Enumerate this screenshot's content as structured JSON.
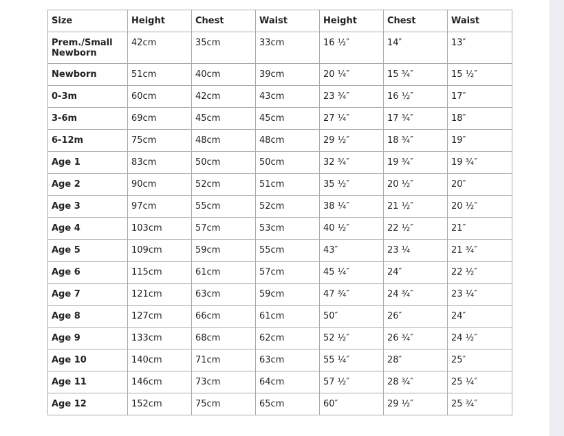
{
  "headers": [
    "Size",
    "Height",
    "Chest",
    "Waist",
    "Height",
    "Chest",
    "Waist"
  ],
  "rows": [
    [
      "Prem./Small Newborn",
      "42cm",
      "35cm",
      "33cm",
      "16 ½″",
      "14″",
      "13″"
    ],
    [
      "Newborn",
      "51cm",
      "40cm",
      "39cm",
      "20 ¼″",
      "15 ¾″",
      "15 ½″"
    ],
    [
      "0-3m",
      "60cm",
      "42cm",
      "43cm",
      "23 ¾″",
      "16 ½″",
      "17″"
    ],
    [
      "3-6m",
      "69cm",
      "45cm",
      "45cm",
      "27 ¼″",
      "17 ¾″",
      "18″"
    ],
    [
      "6-12m",
      "75cm",
      "48cm",
      "48cm",
      "29 ½″",
      "18 ¾″",
      "19″"
    ],
    [
      "Age 1",
      "83cm",
      "50cm",
      "50cm",
      "32 ¾″",
      "19 ¾″",
      "19 ¾″"
    ],
    [
      "Age 2",
      "90cm",
      "52cm",
      "51cm",
      "35 ½″",
      "20 ½″",
      "20″"
    ],
    [
      "Age 3",
      "97cm",
      "55cm",
      "52cm",
      "38 ¼″",
      "21 ½″",
      "20 ½″"
    ],
    [
      "Age 4",
      "103cm",
      "57cm",
      "53cm",
      "40 ½″",
      "22 ½″",
      "21″"
    ],
    [
      "Age 5",
      "109cm",
      "59cm",
      "55cm",
      "43″",
      "23 ¼",
      "21 ¾″"
    ],
    [
      "Age 6",
      "115cm",
      "61cm",
      "57cm",
      "45 ¼″",
      "24″",
      "22 ½″"
    ],
    [
      "Age 7",
      "121cm",
      "63cm",
      "59cm",
      "47 ¾″",
      "24 ¾″",
      "23 ¼″"
    ],
    [
      "Age 8",
      "127cm",
      "66cm",
      "61cm",
      "50″",
      "26″",
      "24″"
    ],
    [
      "Age 9",
      "133cm",
      "68cm",
      "62cm",
      "52 ½″",
      "26 ¾″",
      "24 ½″"
    ],
    [
      "Age 10",
      "140cm",
      "71cm",
      "63cm",
      "55 ¼″",
      "28″",
      "25″"
    ],
    [
      "Age 11",
      "146cm",
      "73cm",
      "64cm",
      "57 ½″",
      "28 ¾″",
      "25 ¼″"
    ],
    [
      "Age 12",
      "152cm",
      "75cm",
      "65cm",
      "60″",
      "29 ½″",
      "25 ¾″"
    ]
  ]
}
